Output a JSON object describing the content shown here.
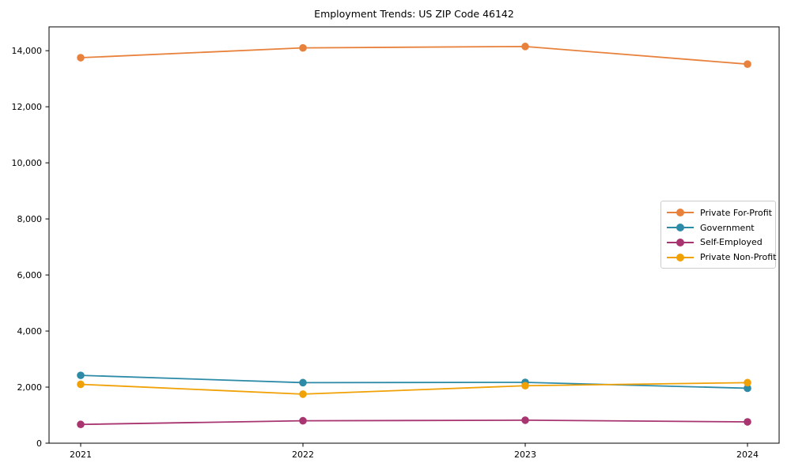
{
  "figure": {
    "background": "#ffffff",
    "axis_color": "#000000",
    "text_color": "#000000"
  },
  "chart_data": {
    "type": "line",
    "title": "Employment Trends: US ZIP Code 46142",
    "categories": [
      "2021",
      "2022",
      "2023",
      "2024"
    ],
    "series": [
      {
        "name": "Private For-Profit",
        "color": "#E8813C",
        "marker": "circle",
        "values": [
          13750,
          14100,
          14150,
          13520
        ]
      },
      {
        "name": "Government",
        "color": "#2E8BA8",
        "marker": "circle",
        "values": [
          2420,
          2160,
          2170,
          1960
        ]
      },
      {
        "name": "Self-Employed",
        "color": "#A83470",
        "marker": "circle",
        "values": [
          670,
          800,
          820,
          760
        ]
      },
      {
        "name": "Private Non-Profit",
        "color": "#F0A106",
        "marker": "circle",
        "values": [
          2100,
          1750,
          2050,
          2160
        ]
      }
    ],
    "xlabel": "",
    "ylabel": "",
    "ylim": [
      0,
      14850
    ],
    "yticks": [
      0,
      2000,
      4000,
      6000,
      8000,
      10000,
      12000,
      14000
    ],
    "ytick_labels": [
      "0",
      "2,000",
      "4,000",
      "6,000",
      "8,000",
      "10,000",
      "12,000",
      "14,000"
    ],
    "grid": false,
    "legend_position": "center-right"
  }
}
